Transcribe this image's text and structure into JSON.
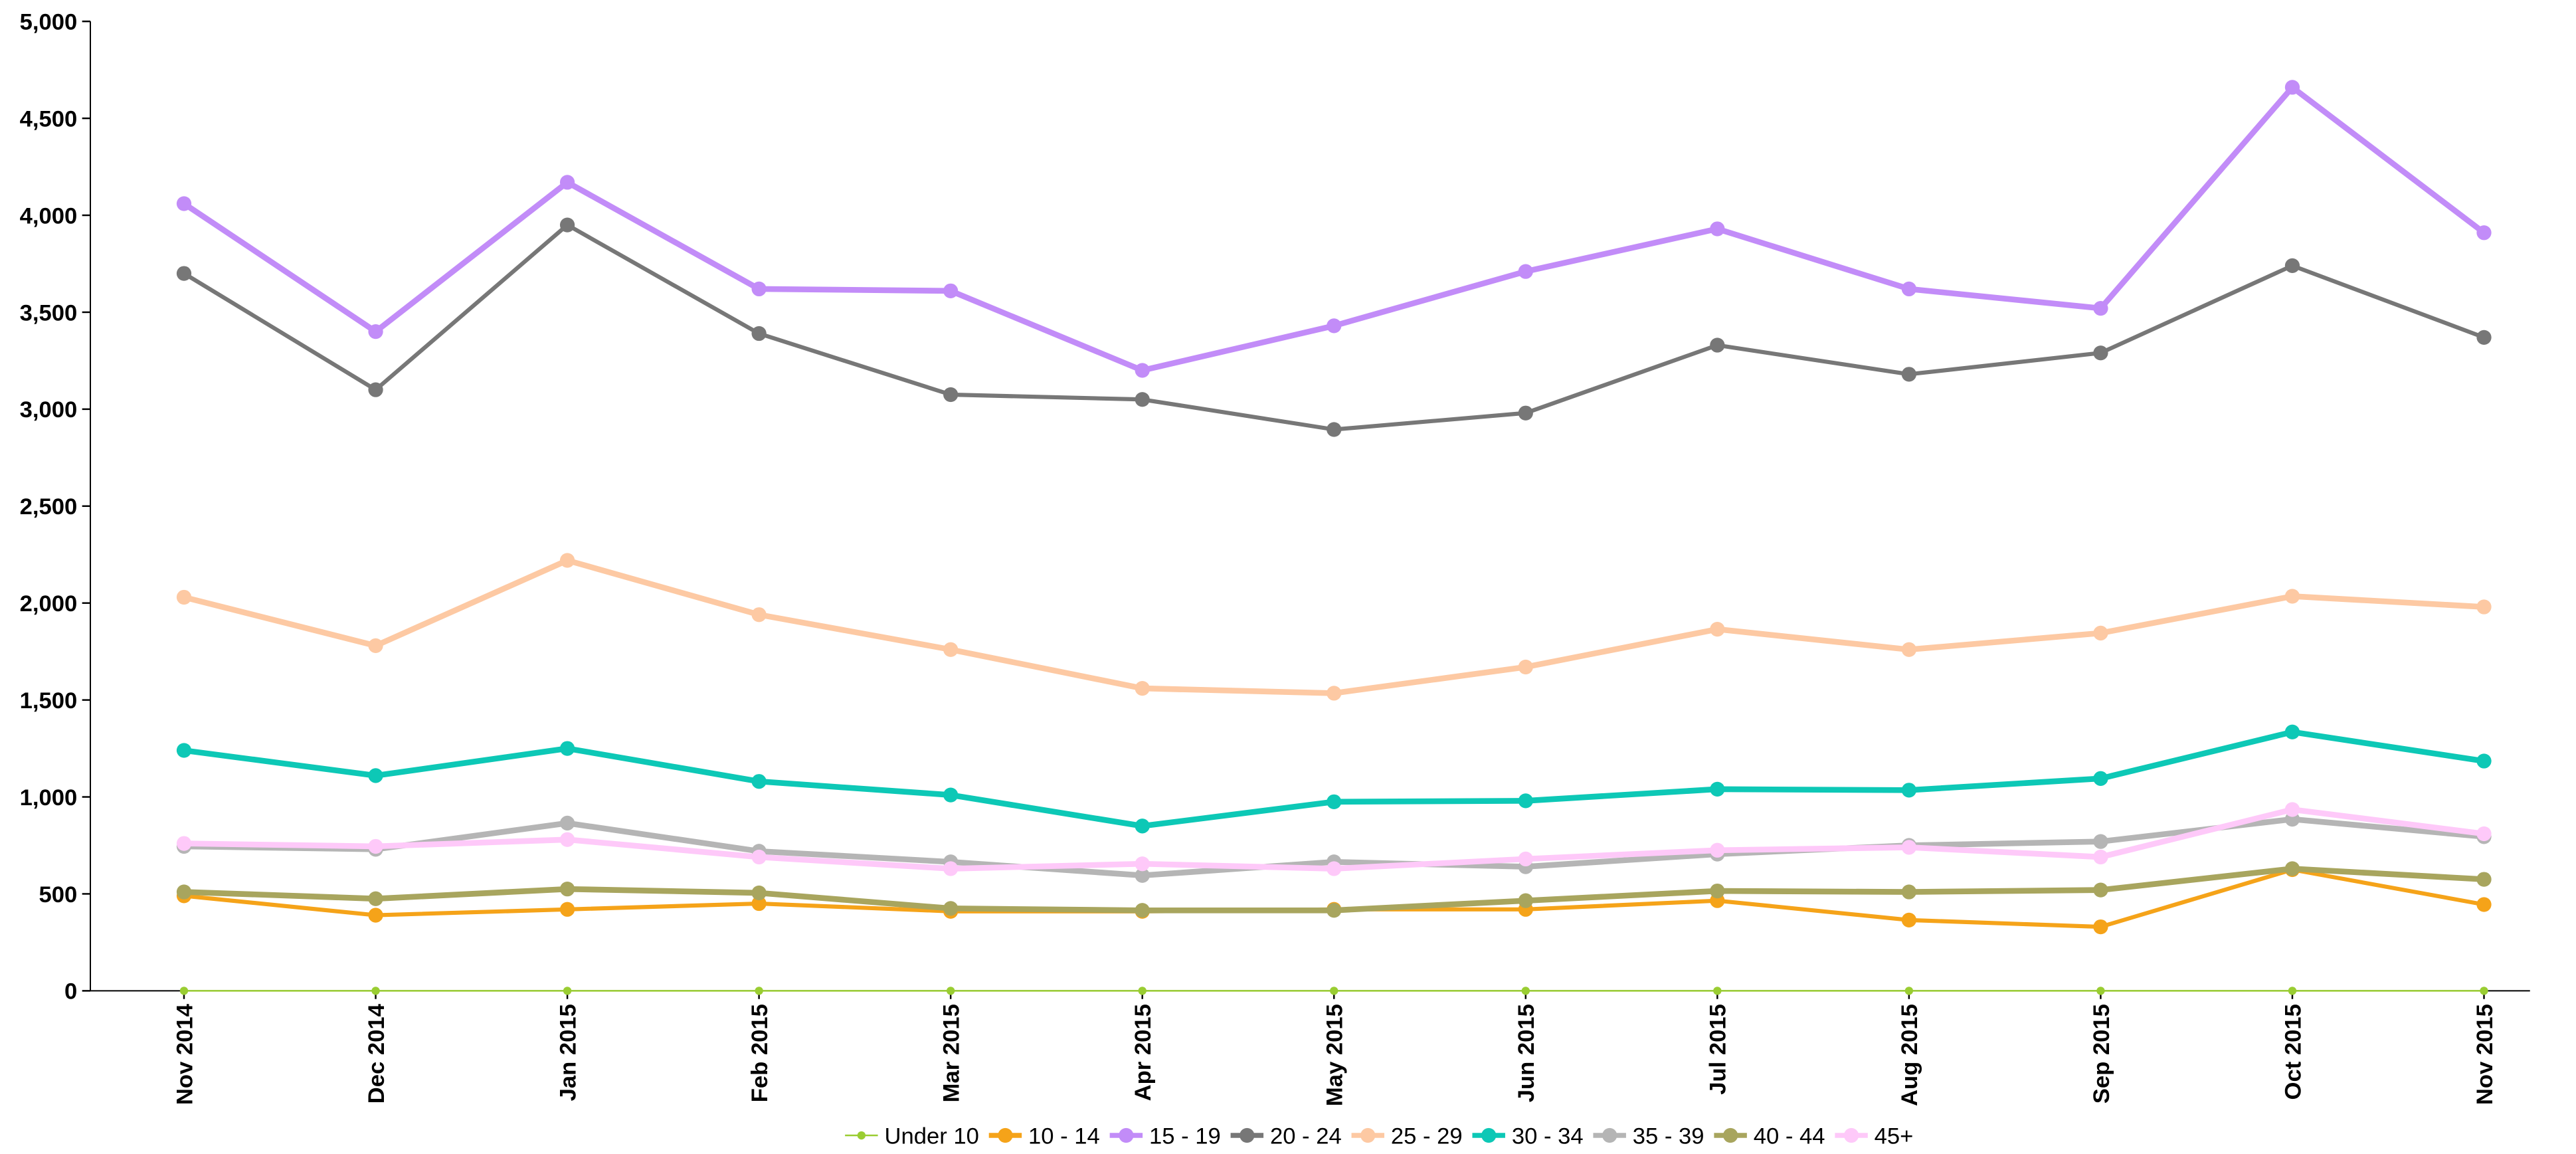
{
  "chart_data": {
    "type": "line",
    "categories": [
      "Nov 2014",
      "Dec 2014",
      "Jan 2015",
      "Feb 2015",
      "Mar 2015",
      "Apr 2015",
      "May 2015",
      "Jun 2015",
      "Jul 2015",
      "Aug 2015",
      "Sep 2015",
      "Oct 2015",
      "Nov 2015"
    ],
    "series": [
      {
        "name": "Under 10",
        "color": "#9acd32",
        "values": [
          0,
          0,
          0,
          0,
          0,
          0,
          0,
          0,
          0,
          0,
          0,
          0,
          0
        ]
      },
      {
        "name": "10 - 14",
        "color": "#f5a319",
        "values": [
          490,
          390,
          420,
          450,
          410,
          410,
          420,
          420,
          465,
          365,
          330,
          625,
          445
        ]
      },
      {
        "name": "15 - 19",
        "color": "#c28cf8",
        "values": [
          4060,
          3400,
          4170,
          3620,
          3610,
          3200,
          3430,
          3710,
          3930,
          3620,
          3520,
          4660,
          3910
        ]
      },
      {
        "name": "20 - 24",
        "color": "#777777",
        "values": [
          3700,
          3100,
          3950,
          3390,
          3075,
          3050,
          2895,
          2980,
          3330,
          3180,
          3290,
          3740,
          3370
        ]
      },
      {
        "name": "25 - 29",
        "color": "#fdc9a3",
        "values": [
          2030,
          1780,
          2220,
          1940,
          1760,
          1560,
          1535,
          1670,
          1865,
          1760,
          1845,
          2035,
          1980
        ]
      },
      {
        "name": "30 - 34",
        "color": "#0dc8b6",
        "values": [
          1240,
          1110,
          1250,
          1080,
          1010,
          850,
          975,
          980,
          1040,
          1035,
          1095,
          1335,
          1185
        ]
      },
      {
        "name": "35 - 39",
        "color": "#b5b5b5",
        "values": [
          745,
          730,
          865,
          720,
          665,
          595,
          665,
          640,
          705,
          750,
          770,
          885,
          795
        ]
      },
      {
        "name": "40 - 44",
        "color": "#a8a55e",
        "values": [
          510,
          475,
          525,
          505,
          425,
          415,
          415,
          465,
          515,
          510,
          520,
          630,
          575
        ]
      },
      {
        "name": "45+",
        "color": "#fec9f9",
        "values": [
          760,
          745,
          780,
          690,
          630,
          655,
          630,
          680,
          725,
          740,
          690,
          935,
          810
        ]
      }
    ],
    "ylim": [
      0,
      5000
    ],
    "yticks": [
      0,
      500,
      {
        "value": 1000,
        "label": "1,000"
      },
      {
        "value": 1500,
        "label": "1,500"
      },
      {
        "value": 2000,
        "label": "2,000"
      },
      {
        "value": 2500,
        "label": "2,500"
      },
      {
        "value": 3000,
        "label": "3,000"
      },
      {
        "value": 3500,
        "label": "3,500"
      },
      {
        "value": 4000,
        "label": "4,000"
      },
      {
        "value": 4500,
        "label": "4,500"
      },
      {
        "value": 5000,
        "label": "5,000"
      }
    ],
    "legend": "bottom"
  }
}
